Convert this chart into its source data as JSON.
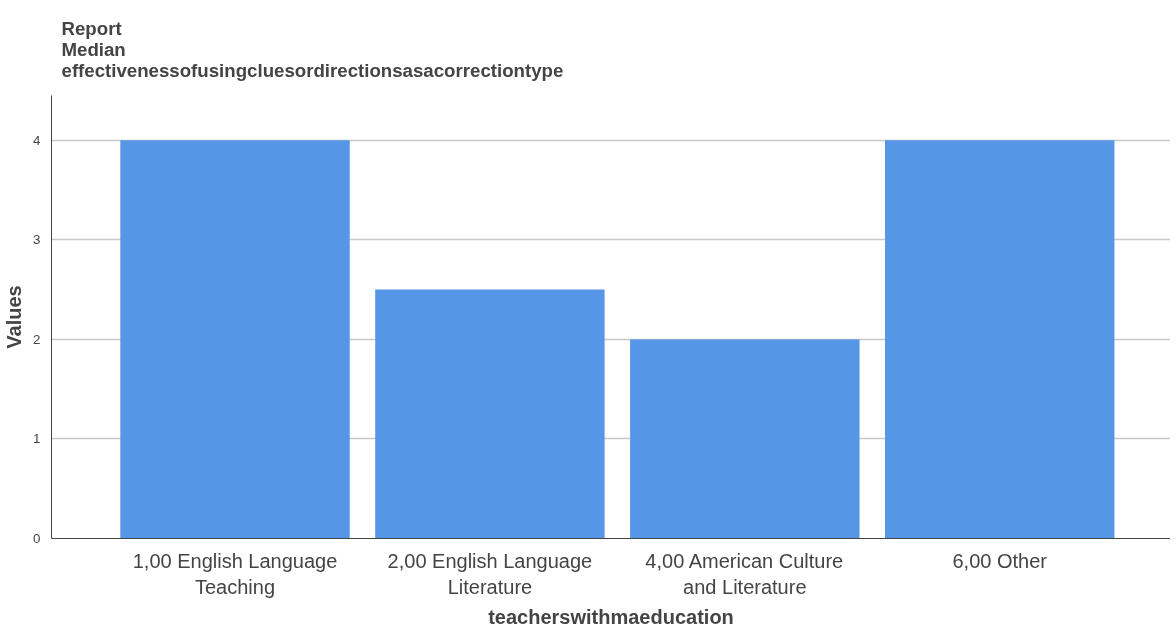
{
  "chart_data": {
    "type": "bar",
    "title": "Report\nMedian\neffectivenessofusingcluesordirectionsasacorrectiontype",
    "xlabel": "teacherswithmaeducation",
    "ylabel": "Values",
    "categories": [
      "1,00 English Language\nTeaching",
      "2,00 English Language\nLiterature",
      "4,00 American Culture\nand Literature",
      "6,00 Other"
    ],
    "values": [
      4,
      2.5,
      2,
      4
    ],
    "color": "#5596e6",
    "ylim": [
      0,
      4.45
    ],
    "yticks": [
      0,
      1,
      2,
      3,
      4
    ],
    "grid": "y"
  }
}
